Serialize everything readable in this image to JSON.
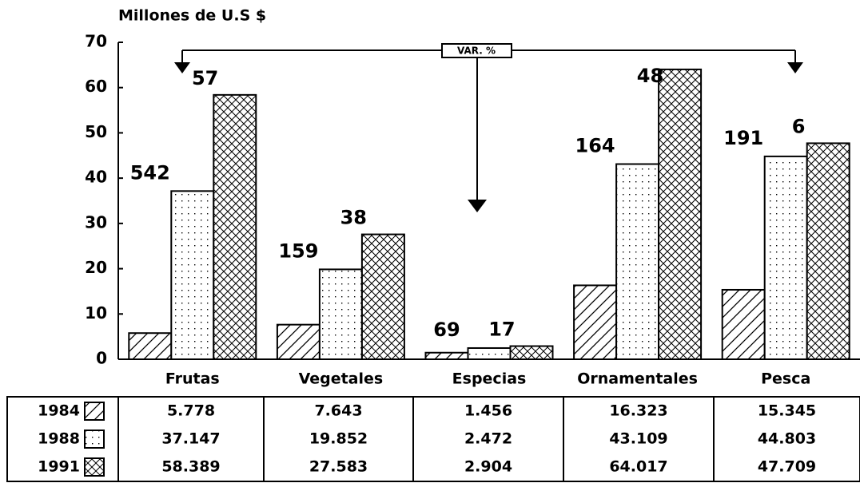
{
  "chart_data": {
    "type": "bar",
    "title": "Millones de U.S $",
    "annotation": "VAR. %",
    "categories": [
      "Frutas",
      "Vegetales",
      "Especias",
      "Ornamentales",
      "Pesca"
    ],
    "series": [
      {
        "name": "1984",
        "color": "#000000",
        "pattern": "hatch",
        "values": [
          5.778,
          7.643,
          1.456,
          16.323,
          15.345
        ]
      },
      {
        "name": "1988",
        "color": "#000000",
        "pattern": "dots",
        "values": [
          37.147,
          19.852,
          2.472,
          43.109,
          44.803
        ]
      },
      {
        "name": "1991",
        "color": "#000000",
        "pattern": "crosshatch",
        "values": [
          58.389,
          27.583,
          2.904,
          64.017,
          47.709
        ]
      }
    ],
    "var_1984_1988": [
      542,
      159,
      69,
      164,
      191
    ],
    "var_1988_1991": [
      57,
      38,
      17,
      48,
      6
    ],
    "ylim": [
      0,
      70
    ],
    "yticks": [
      0,
      10,
      20,
      30,
      40,
      50,
      60,
      70
    ],
    "grid": false
  }
}
